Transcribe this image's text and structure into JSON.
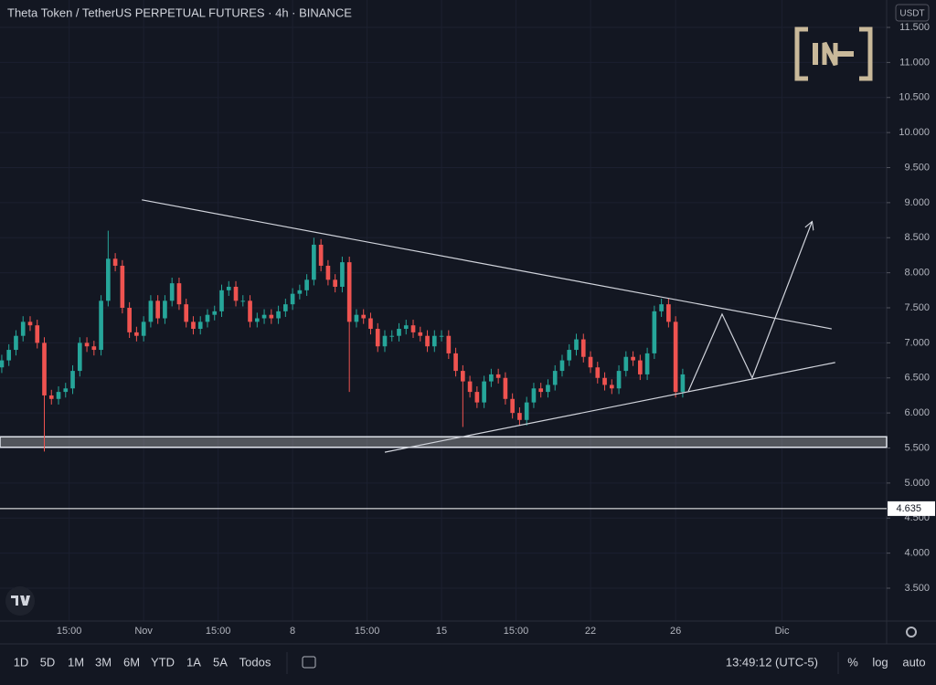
{
  "chart_data": {
    "type": "candlestick",
    "title": "Theta Token / TetherUS PERPETUAL FUTURES · 4h · BINANCE",
    "currency": "USDT",
    "x": [
      -40,
      -38,
      -36,
      -34,
      -32,
      -30,
      -28,
      -26,
      -24,
      -22,
      -20,
      -18,
      -16,
      -14,
      -12,
      -10,
      -8,
      -6,
      -4,
      -2,
      0,
      2,
      4,
      6,
      8,
      10,
      12,
      14,
      16,
      18,
      20,
      22,
      24,
      26,
      28,
      30,
      32,
      34,
      36,
      38,
      40,
      42,
      44,
      46,
      48,
      50,
      52,
      54,
      56,
      58,
      60,
      62,
      64,
      66,
      68,
      70,
      72,
      74,
      76,
      78,
      80,
      82,
      84,
      86,
      88,
      90,
      92,
      94,
      96,
      98,
      100,
      102,
      104,
      106,
      108,
      110,
      112,
      114,
      116,
      118,
      120,
      122,
      124,
      126,
      128,
      130,
      132,
      134,
      136,
      138,
      140,
      142,
      144,
      146,
      148,
      150,
      152
    ],
    "open": [
      6.65,
      6.75,
      6.9,
      7.1,
      7.3,
      7.25,
      7.0,
      6.25,
      6.2,
      6.3,
      6.35,
      6.6,
      7.0,
      6.95,
      6.9,
      7.6,
      8.2,
      8.1,
      7.5,
      7.15,
      7.1,
      7.3,
      7.6,
      7.35,
      7.6,
      7.85,
      7.55,
      7.3,
      7.2,
      7.3,
      7.4,
      7.45,
      7.75,
      7.8,
      7.6,
      7.6,
      7.3,
      7.35,
      7.4,
      7.35,
      7.45,
      7.55,
      7.7,
      7.75,
      7.9,
      8.4,
      8.1,
      7.9,
      7.8,
      8.15,
      7.3,
      7.4,
      7.35,
      7.2,
      6.95,
      7.1,
      7.1,
      7.2,
      7.25,
      7.15,
      7.1,
      6.95,
      7.1,
      7.1,
      6.85,
      6.6,
      6.45,
      6.3,
      6.15,
      6.45,
      6.55,
      6.5,
      6.2,
      6.0,
      5.9,
      6.15,
      6.35,
      6.3,
      6.4,
      6.6,
      6.75,
      6.9,
      7.05,
      6.8,
      6.65,
      6.5,
      6.4,
      6.35,
      6.6,
      6.8,
      6.75,
      6.55,
      6.85,
      7.45,
      7.55,
      7.3,
      6.3
    ],
    "high": [
      6.83,
      6.98,
      7.18,
      7.38,
      7.38,
      7.33,
      7.08,
      6.33,
      6.38,
      6.43,
      6.68,
      7.08,
      7.08,
      7.03,
      7.68,
      8.6,
      8.28,
      8.18,
      7.58,
      7.23,
      7.38,
      7.68,
      7.68,
      7.68,
      7.93,
      7.93,
      7.63,
      7.38,
      7.38,
      7.48,
      7.53,
      7.83,
      7.88,
      7.88,
      7.68,
      7.68,
      7.43,
      7.48,
      7.48,
      7.53,
      7.63,
      7.78,
      7.83,
      7.98,
      8.5,
      8.48,
      8.18,
      7.98,
      8.23,
      8.23,
      7.48,
      7.48,
      7.43,
      7.28,
      7.18,
      7.18,
      7.28,
      7.33,
      7.33,
      7.23,
      7.18,
      7.18,
      7.18,
      7.18,
      6.93,
      6.68,
      6.53,
      6.38,
      6.53,
      6.63,
      6.63,
      6.58,
      6.28,
      6.08,
      6.23,
      6.43,
      6.43,
      6.48,
      6.68,
      6.83,
      6.98,
      7.13,
      7.13,
      6.88,
      6.73,
      6.58,
      6.48,
      6.68,
      6.88,
      6.88,
      6.83,
      6.93,
      7.53,
      7.63,
      7.63,
      7.38,
      6.63
    ],
    "low": [
      6.57,
      6.67,
      6.82,
      7.02,
      7.17,
      6.92,
      5.45,
      6.12,
      6.12,
      6.22,
      6.27,
      6.52,
      6.87,
      6.82,
      6.82,
      7.52,
      8.02,
      7.42,
      7.07,
      7.02,
      7.02,
      7.22,
      7.27,
      7.27,
      7.52,
      7.47,
      7.22,
      7.12,
      7.12,
      7.22,
      7.32,
      7.37,
      7.67,
      7.52,
      7.52,
      7.22,
      7.22,
      7.27,
      7.27,
      7.27,
      7.37,
      7.47,
      7.62,
      7.67,
      7.82,
      8.02,
      7.82,
      7.72,
      7.72,
      6.3,
      7.22,
      7.27,
      7.12,
      6.87,
      6.87,
      7.02,
      7.02,
      7.12,
      7.07,
      7.02,
      6.87,
      6.87,
      7.02,
      6.77,
      6.52,
      5.8,
      6.22,
      6.07,
      6.07,
      6.37,
      6.42,
      6.12,
      5.92,
      5.82,
      5.82,
      6.07,
      6.22,
      6.22,
      6.32,
      6.52,
      6.67,
      6.82,
      6.72,
      6.57,
      6.42,
      6.32,
      6.27,
      6.27,
      6.52,
      6.67,
      6.47,
      6.47,
      6.77,
      7.37,
      7.22,
      6.22,
      6.22
    ],
    "close": [
      6.75,
      6.9,
      7.1,
      7.3,
      7.25,
      7.0,
      6.25,
      6.2,
      6.3,
      6.35,
      6.6,
      7.0,
      6.95,
      6.9,
      7.6,
      8.2,
      8.1,
      7.5,
      7.15,
      7.1,
      7.3,
      7.6,
      7.35,
      7.6,
      7.85,
      7.55,
      7.3,
      7.2,
      7.3,
      7.4,
      7.45,
      7.75,
      7.8,
      7.6,
      7.6,
      7.3,
      7.35,
      7.4,
      7.35,
      7.45,
      7.55,
      7.7,
      7.75,
      7.9,
      8.4,
      8.1,
      7.9,
      7.8,
      8.15,
      7.3,
      7.4,
      7.35,
      7.2,
      6.95,
      7.1,
      7.1,
      7.2,
      7.25,
      7.15,
      7.1,
      6.95,
      7.1,
      7.1,
      6.85,
      6.6,
      6.45,
      6.3,
      6.15,
      6.45,
      6.55,
      6.5,
      6.2,
      6.0,
      5.9,
      6.15,
      6.35,
      6.3,
      6.4,
      6.6,
      6.75,
      6.9,
      7.05,
      6.8,
      6.65,
      6.5,
      6.4,
      6.35,
      6.6,
      6.8,
      6.75,
      6.55,
      6.85,
      7.45,
      7.55,
      7.3,
      6.3,
      6.55
    ],
    "up_color": "#26a69a",
    "down_color": "#ef5350",
    "xlim": [
      -40.5,
      209.5
    ],
    "ylim": [
      3.031,
      11.891
    ],
    "xticks": [
      {
        "value": -21,
        "label": "15:00"
      },
      {
        "value": 0,
        "label": "Nov"
      },
      {
        "value": 21,
        "label": "15:00"
      },
      {
        "value": 42,
        "label": "8"
      },
      {
        "value": 63,
        "label": "15:00"
      },
      {
        "value": 84,
        "label": "15"
      },
      {
        "value": 105,
        "label": "15:00"
      },
      {
        "value": 126,
        "label": "22"
      },
      {
        "value": 150,
        "label": "26"
      },
      {
        "value": 180,
        "label": "Dic"
      }
    ],
    "yticks": [
      {
        "value": 3.5,
        "label": "3.500"
      },
      {
        "value": 4,
        "label": "4.000"
      },
      {
        "value": 4.5,
        "label": "4.500"
      },
      {
        "value": 5,
        "label": "5.000"
      },
      {
        "value": 5.5,
        "label": "5.500"
      },
      {
        "value": 6,
        "label": "6.000"
      },
      {
        "value": 6.5,
        "label": "6.500"
      },
      {
        "value": 7,
        "label": "7.000"
      },
      {
        "value": 7.5,
        "label": "7.500"
      },
      {
        "value": 8,
        "label": "8.000"
      },
      {
        "value": 8.5,
        "label": "8.500"
      },
      {
        "value": 9,
        "label": "9.000"
      },
      {
        "value": 9.5,
        "label": "9.500"
      },
      {
        "value": 10,
        "label": "10.000"
      },
      {
        "value": 10.5,
        "label": "10.500"
      },
      {
        "value": 11,
        "label": "11.000"
      },
      {
        "value": 11.5,
        "label": "11.500"
      }
    ],
    "grid": true,
    "lines": [
      {
        "x": [
          -0.5,
          194
        ],
        "y": [
          9.04,
          7.2
        ]
      },
      {
        "x": [
          68,
          195
        ],
        "y": [
          5.44,
          6.72
        ]
      },
      {
        "x": [
          153.6,
          163.1,
          171.6,
          188.4
        ],
        "y": [
          6.31,
          7.41,
          6.5,
          8.72
        ],
        "arrow": true
      }
    ],
    "zone": [
      5.51,
      5.66
    ],
    "hline": {
      "value": 4.635,
      "label": "4.635"
    }
  },
  "ui": {
    "ranges": [
      "1D",
      "5D",
      "1M",
      "3M",
      "6M",
      "YTD",
      "1A",
      "5A",
      "Todos"
    ],
    "clock": "13:49:12 (UTC-5)",
    "options": [
      "%",
      "log",
      "auto"
    ]
  }
}
